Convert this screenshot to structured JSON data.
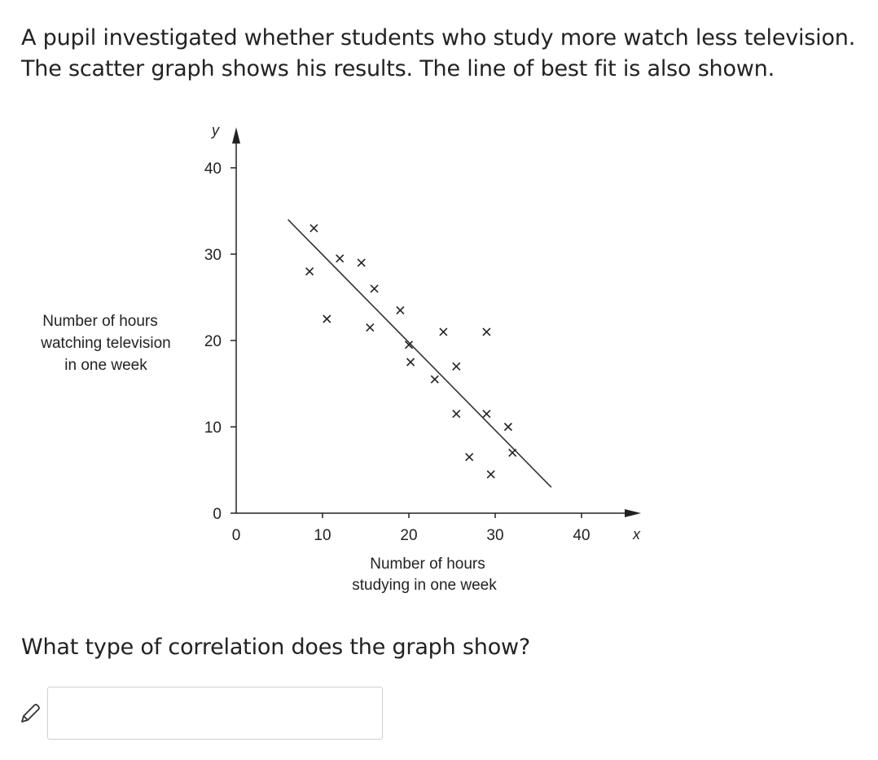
{
  "question": {
    "intro_line1": "A pupil investigated whether students who study more watch less television.",
    "intro_line2": "The scatter graph shows his results. The line of best fit is also shown.",
    "prompt": "What type of correlation does the graph show?",
    "answer_value": "",
    "answer_placeholder": ""
  },
  "icons": {
    "answer": "pencil-icon",
    "point_marker": "cross-marker"
  },
  "colors": {
    "text": "#222222",
    "axis": "#222222",
    "input_border": "#cfcfcf"
  },
  "chart_data": {
    "type": "scatter",
    "x_variable": "x",
    "y_variable": "y",
    "xlabel": [
      "Number of hours",
      "studying in one week"
    ],
    "ylabel": [
      "Number of hours",
      "watching television",
      "in one week"
    ],
    "xlim": [
      0,
      45
    ],
    "ylim": [
      0,
      43
    ],
    "x_ticks": [
      0,
      10,
      20,
      30,
      40
    ],
    "y_ticks": [
      0,
      10,
      20,
      30,
      40
    ],
    "grid": false,
    "legend": "none",
    "marker": "x",
    "points": [
      [
        9,
        33
      ],
      [
        8.5,
        28
      ],
      [
        12,
        29.5
      ],
      [
        14.5,
        29
      ],
      [
        16,
        26
      ],
      [
        10.5,
        22.5
      ],
      [
        15.5,
        21.5
      ],
      [
        19,
        23.5
      ],
      [
        20,
        19.5
      ],
      [
        20.2,
        17.5
      ],
      [
        24,
        21
      ],
      [
        23,
        15.5
      ],
      [
        25.5,
        17
      ],
      [
        29,
        21
      ],
      [
        25.5,
        11.5
      ],
      [
        29,
        11.5
      ],
      [
        31.5,
        10
      ],
      [
        27,
        6.5
      ],
      [
        29.5,
        4.5
      ],
      [
        32,
        7
      ]
    ],
    "best_fit_line": [
      [
        6,
        34
      ],
      [
        36.5,
        3
      ]
    ]
  }
}
